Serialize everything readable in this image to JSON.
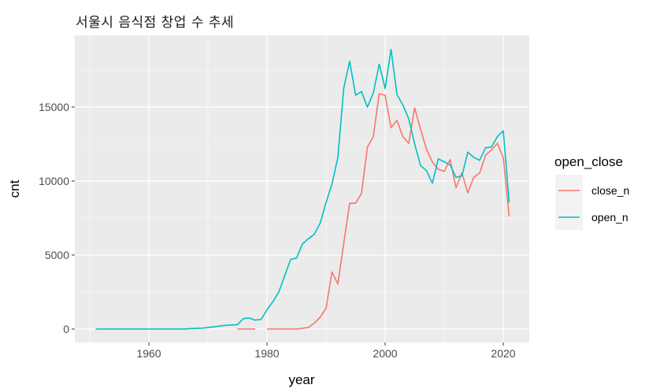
{
  "chart_data": {
    "type": "line",
    "title": "서울시 음식점 창업 수 추세",
    "xlabel": "year",
    "ylabel": "cnt",
    "xlim": [
      1948,
      2024
    ],
    "ylim": [
      -1300,
      19800
    ],
    "x_ticks": [
      1960,
      1980,
      2000,
      2020
    ],
    "y_ticks": [
      0,
      5000,
      10000,
      15000
    ],
    "x_tick_labels": [
      "1960",
      "1980",
      "2000",
      "2020"
    ],
    "y_tick_labels": [
      "0",
      "5000",
      "10000",
      "15000"
    ],
    "grid": true,
    "legend_position": "right",
    "legend_title": "open_close",
    "series": [
      {
        "name": "close_n",
        "color": "#F8766D",
        "x": [
          1975,
          1976,
          1977,
          1978,
          1979,
          1980,
          1981,
          1982,
          1983,
          1984,
          1985,
          1986,
          1987,
          1988,
          1989,
          1990,
          1991,
          1992,
          1993,
          1994,
          1995,
          1996,
          1997,
          1998,
          1999,
          2000,
          2001,
          2002,
          2003,
          2004,
          2005,
          2006,
          2007,
          2008,
          2009,
          2010,
          2011,
          2012,
          2013,
          2014,
          2015,
          2016,
          2017,
          2018,
          2019,
          2020,
          2021
        ],
        "values": [
          0,
          0,
          0,
          0,
          null,
          0,
          0,
          0,
          0,
          0,
          0,
          50,
          100,
          400,
          800,
          1400,
          3850,
          3050,
          5800,
          8500,
          8500,
          9150,
          12300,
          13000,
          15900,
          15800,
          13600,
          14100,
          13000,
          12550,
          14950,
          13500,
          12150,
          11300,
          10800,
          10650,
          11450,
          9550,
          10550,
          9200,
          10250,
          10550,
          11750,
          12100,
          12550,
          11600,
          7600
        ]
      },
      {
        "name": "open_n",
        "color": "#00BFC4",
        "x": [
          1951,
          1952,
          1953,
          1954,
          1955,
          1956,
          1957,
          1958,
          1959,
          1960,
          1961,
          1962,
          1963,
          1964,
          1965,
          1966,
          1967,
          1968,
          1969,
          1970,
          1971,
          1972,
          1973,
          1974,
          1975,
          1976,
          1977,
          1978,
          1979,
          1980,
          1981,
          1982,
          1983,
          1984,
          1985,
          1986,
          1987,
          1988,
          1989,
          1990,
          1991,
          1992,
          1993,
          1994,
          1995,
          1996,
          1997,
          1998,
          1999,
          2000,
          2001,
          2002,
          2003,
          2004,
          2005,
          2006,
          2007,
          2008,
          2009,
          2010,
          2011,
          2012,
          2013,
          2014,
          2015,
          2016,
          2017,
          2018,
          2019,
          2020,
          2021
        ],
        "values": [
          0,
          0,
          0,
          0,
          0,
          0,
          0,
          0,
          0,
          0,
          0,
          0,
          0,
          0,
          0,
          0,
          30,
          40,
          60,
          100,
          150,
          200,
          250,
          270,
          300,
          700,
          750,
          600,
          650,
          1300,
          1850,
          2500,
          3600,
          4700,
          4800,
          5750,
          6100,
          6400,
          7150,
          8550,
          9800,
          11600,
          16300,
          18100,
          15800,
          16050,
          15000,
          15950,
          17900,
          16250,
          18900,
          15850,
          15150,
          14200,
          12500,
          11050,
          10700,
          9850,
          11500,
          11300,
          11100,
          10250,
          10350,
          11950,
          11600,
          11400,
          12250,
          12300,
          13000,
          13400,
          8550
        ]
      }
    ]
  },
  "colors": {
    "panel_bg": "#EBEBEB",
    "grid": "#FFFFFF",
    "legend_key_bg": "#F2F2F2"
  }
}
